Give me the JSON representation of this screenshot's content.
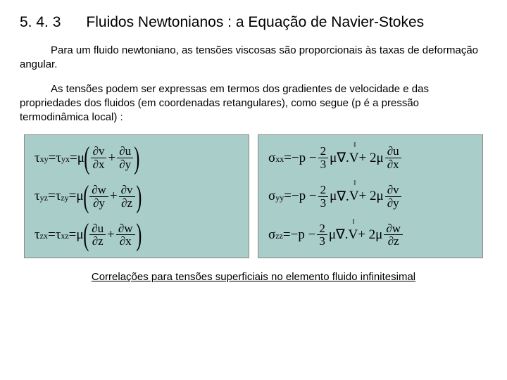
{
  "header": {
    "number": "5. 4. 3",
    "title": "Fluidos Newtonianos : a Equação de Navier-Stokes"
  },
  "paragraphs": {
    "p1": "Para um fluido newtoniano, as tensões viscosas são proporcionais às taxas de deformação angular.",
    "p2": "As tensões podem ser expressas em termos dos gradientes de velocidade e das propriedades dos fluidos (em coordenadas retangulares), como segue (p é a pressão termodinâmica local) :"
  },
  "equations": {
    "left": [
      {
        "lhs1": "τ",
        "s1": "xy",
        "lhs2": "τ",
        "s2": "yx",
        "d1n": "∂v",
        "d1d": "∂x",
        "d2n": "∂u",
        "d2d": "∂y"
      },
      {
        "lhs1": "τ",
        "s1": "yz",
        "lhs2": "τ",
        "s2": "zy",
        "d1n": "∂w",
        "d1d": "∂y",
        "d2n": "∂v",
        "d2d": "∂z"
      },
      {
        "lhs1": "τ",
        "s1": "zx",
        "lhs2": "τ",
        "s2": "xz",
        "d1n": "∂u",
        "d1d": "∂z",
        "d2n": "∂w",
        "d2d": "∂x"
      }
    ],
    "right": [
      {
        "lhs": "σ",
        "s": "xx",
        "dn": "∂u",
        "dd": "∂x"
      },
      {
        "lhs": "σ",
        "s": "yy",
        "dn": "∂v",
        "dd": "∂y"
      },
      {
        "lhs": "σ",
        "s": "zz",
        "dn": "∂w",
        "dd": "∂z"
      }
    ],
    "common": {
      "eq": " = ",
      "mu": "μ",
      "plus": " + ",
      "minus_p": "−p − ",
      "two_thirds_num": "2",
      "two_thirds_den": "3",
      "nabla": "∇.",
      "V": "V",
      "arrow": "‖",
      "plus2mu": " + 2μ"
    }
  },
  "caption": "Correlações para tensões superficiais no elemento fluido infinitesimal",
  "style": {
    "panel_bg": "#a9cdc9",
    "body_bg": "#ffffff",
    "text_color": "#000000",
    "title_fontsize": 21,
    "body_fontsize": 15,
    "eq_fontsize": 19
  }
}
